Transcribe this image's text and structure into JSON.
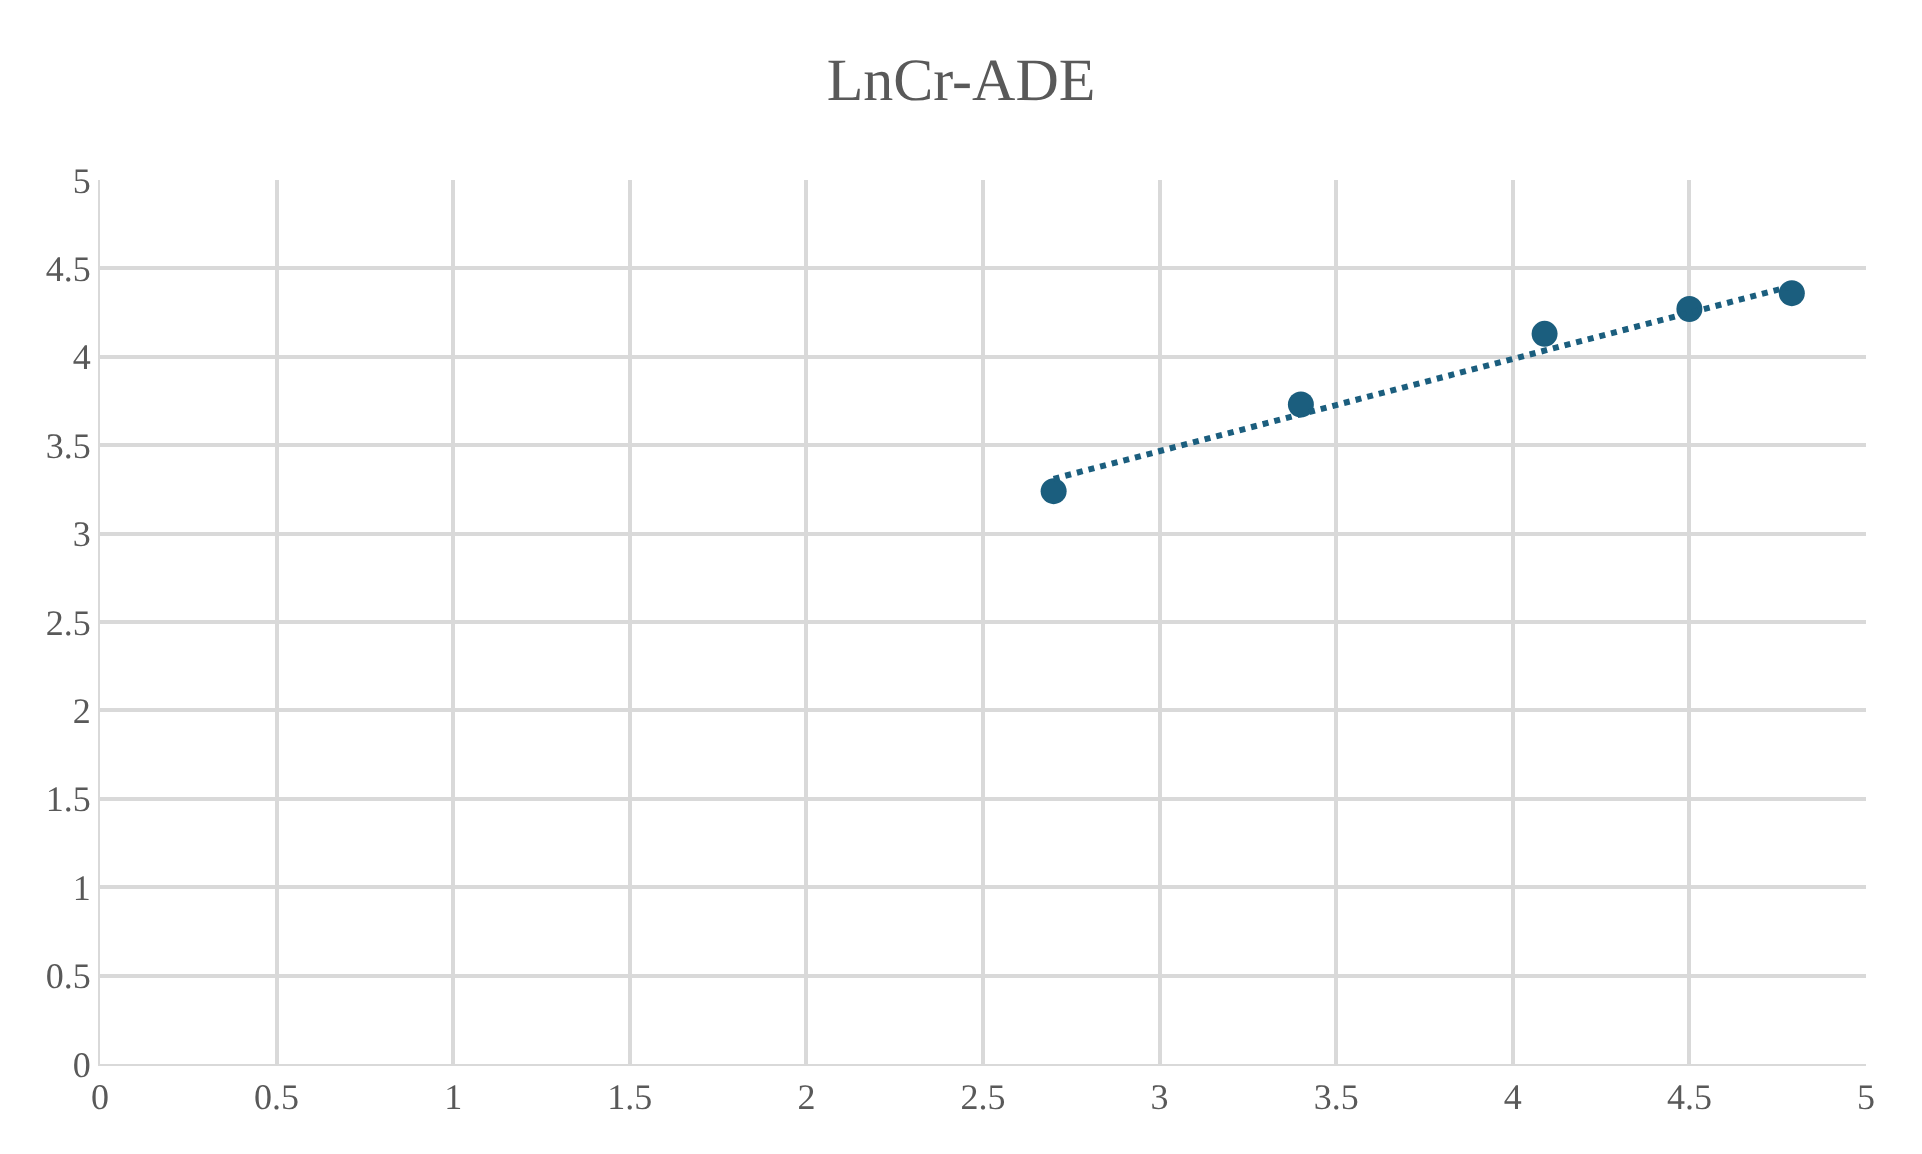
{
  "chart_data": {
    "type": "scatter",
    "title": "LnCr-ADE",
    "xlim": [
      0,
      5
    ],
    "ylim": [
      0,
      5
    ],
    "xticks": [
      0,
      0.5,
      1,
      1.5,
      2,
      2.5,
      3,
      3.5,
      4,
      4.5,
      5
    ],
    "yticks": [
      0,
      0.5,
      1,
      1.5,
      2,
      2.5,
      3,
      3.5,
      4,
      4.5,
      5
    ],
    "grid": true,
    "series": [
      {
        "color": "#1b5e7e",
        "marker": "circle",
        "x": [
          2.7,
          3.4,
          4.09,
          4.5,
          4.79
        ],
        "values": [
          3.24,
          3.73,
          4.13,
          4.27,
          4.36
        ]
      },
      {
        "type": "line",
        "color": "#1b5e7e",
        "line_style": "dotted",
        "marker": "none",
        "x": [
          2.7,
          4.79
        ],
        "values": [
          3.31,
          4.4
        ]
      }
    ]
  }
}
